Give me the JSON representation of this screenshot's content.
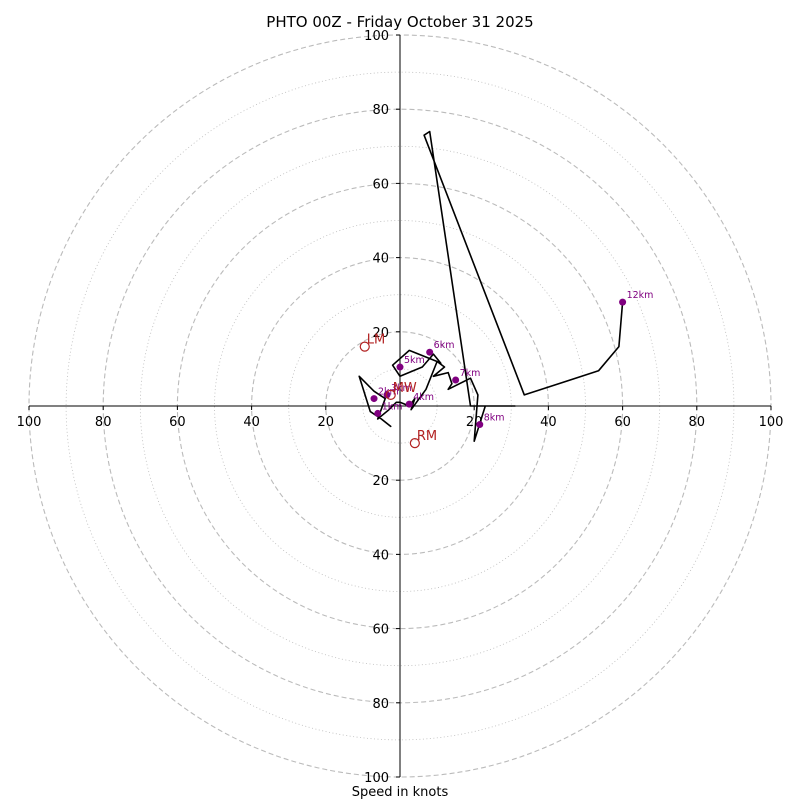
{
  "chart_data": {
    "type": "line",
    "title": "PHTO 00Z - Friday October 31 2025",
    "xlabel": "Speed in knots",
    "ylabel": "",
    "xlim": [
      -100,
      100
    ],
    "ylim": [
      -100,
      100
    ],
    "rings_major": [
      20,
      40,
      60,
      80,
      100
    ],
    "rings_minor": [
      10,
      30,
      50,
      70,
      90
    ],
    "x_ticks": [
      {
        "value": -100,
        "label": "100"
      },
      {
        "value": -80,
        "label": "80"
      },
      {
        "value": -60,
        "label": "60"
      },
      {
        "value": -40,
        "label": "40"
      },
      {
        "value": -20,
        "label": "20"
      },
      {
        "value": 20,
        "label": "20"
      },
      {
        "value": 40,
        "label": "40"
      },
      {
        "value": 60,
        "label": "60"
      },
      {
        "value": 80,
        "label": "80"
      },
      {
        "value": 100,
        "label": "100"
      }
    ],
    "y_ticks": [
      {
        "value": 100,
        "label": "100"
      },
      {
        "value": 80,
        "label": "80"
      },
      {
        "value": 60,
        "label": "60"
      },
      {
        "value": 40,
        "label": "40"
      },
      {
        "value": 20,
        "label": "20"
      },
      {
        "value": -20,
        "label": "20"
      },
      {
        "value": -40,
        "label": "40"
      },
      {
        "value": -60,
        "label": "60"
      },
      {
        "value": -80,
        "label": "80"
      },
      {
        "value": -100,
        "label": "100"
      }
    ],
    "series": [
      {
        "name": "hodograph",
        "color": "#000000",
        "x": [
          -2.5,
          -5,
          -8,
          -11,
          -7,
          -4,
          -6,
          -3,
          -1,
          0,
          2.5,
          4,
          3,
          7,
          10,
          2.5,
          -2,
          0,
          6,
          9,
          11,
          10,
          12,
          9,
          13,
          14,
          13,
          19,
          21,
          20,
          23,
          24,
          26,
          31,
          19,
          8,
          6.5,
          33.5,
          53.5,
          59,
          60
        ],
        "y": [
          -5.5,
          -3.5,
          -1.5,
          8,
          4,
          2,
          -3.5,
          -1,
          1,
          1,
          0,
          2,
          -1,
          4.5,
          12,
          15,
          11,
          8,
          10.5,
          14,
          11.5,
          12,
          10.5,
          8,
          9,
          6,
          4.5,
          7.5,
          3,
          -9.5,
          0,
          0,
          0,
          0,
          0,
          74,
          73,
          3,
          9.5,
          16,
          28
        ]
      }
    ],
    "height_markers": [
      {
        "label": "1km",
        "x": -6,
        "y": -2
      },
      {
        "label": "2km",
        "x": -7,
        "y": 2
      },
      {
        "label": "3km",
        "x": -3.5,
        "y": 3
      },
      {
        "label": "4km",
        "x": 2.5,
        "y": 0.5
      },
      {
        "label": "5km",
        "x": 0,
        "y": 10.5
      },
      {
        "label": "6km",
        "x": 8,
        "y": 14.5
      },
      {
        "label": "7km",
        "x": 15,
        "y": 7
      },
      {
        "label": "8km",
        "x": 21.5,
        "y": -5
      },
      {
        "label": "12km",
        "x": 60,
        "y": 28
      }
    ],
    "storm_motion": [
      {
        "label": "LM",
        "x": -9.5,
        "y": 16
      },
      {
        "label": "MW",
        "x": -2.5,
        "y": 3
      },
      {
        "label": "RM",
        "x": 4,
        "y": -10
      }
    ],
    "colors": {
      "line": "#000000",
      "marker": "#800080",
      "marker_label": "#800080",
      "storm_motion": "#b22222",
      "grid": "#bbbbbb",
      "axis": "#000000"
    }
  }
}
